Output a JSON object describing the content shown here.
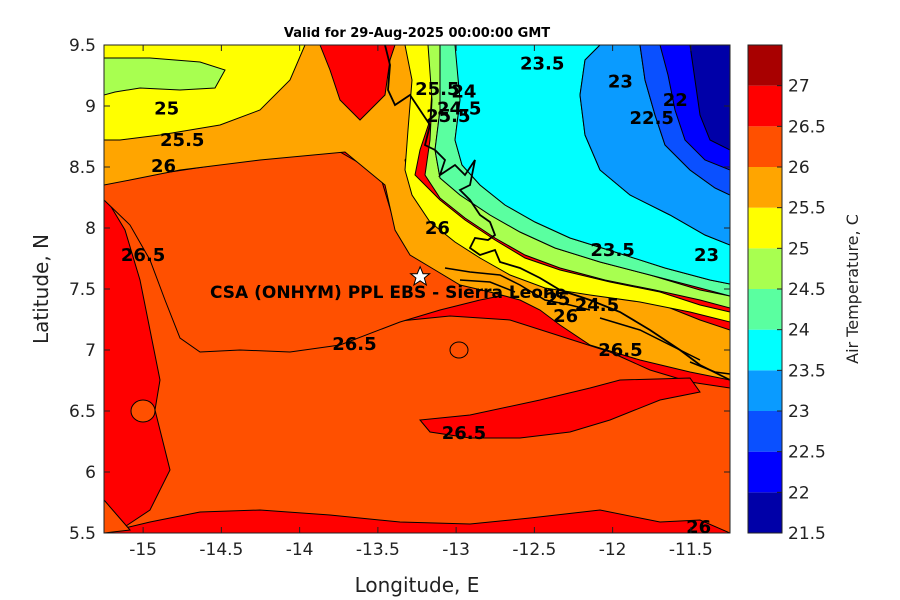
{
  "chart_data": {
    "type": "heatmap",
    "title": "Valid for 29-Aug-2025 00:00:00 GMT",
    "xlabel": "Longitude, E",
    "ylabel": "Latitude, N",
    "xlim": [
      -15.25,
      -11.25
    ],
    "ylim": [
      5.5,
      9.5
    ],
    "xticks": [
      "-15",
      "-14.5",
      "-14",
      "-13.5",
      "-13",
      "-12.5",
      "-12",
      "-11.5"
    ],
    "yticks": [
      "5.5",
      "6",
      "6.5",
      "7",
      "7.5",
      "8",
      "8.5",
      "9",
      "9.5"
    ],
    "colorbar": {
      "label": "Air Temperature, C",
      "ticks": [
        "21.5",
        "22",
        "22.5",
        "23",
        "23.5",
        "24",
        "24.5",
        "25",
        "25.5",
        "26",
        "26.5",
        "27"
      ],
      "colors": [
        "#0000a8",
        "#0000ff",
        "#0a50ff",
        "#0a9bff",
        "#00ffff",
        "#5affa0",
        "#a8ff50",
        "#ffff00",
        "#ffa500",
        "#ff5000",
        "#ff0000",
        "#a80000"
      ]
    },
    "contour_labels": [
      {
        "text": "23.5",
        "lon": -12.45,
        "lat": 9.35
      },
      {
        "text": "23",
        "lon": -11.95,
        "lat": 9.2
      },
      {
        "text": "22",
        "lon": -11.6,
        "lat": 9.05
      },
      {
        "text": "22.5",
        "lon": -11.75,
        "lat": 8.9
      },
      {
        "text": "25",
        "lon": -14.85,
        "lat": 8.98
      },
      {
        "text": "25.5",
        "lon": -14.75,
        "lat": 8.72
      },
      {
        "text": "26",
        "lon": -14.87,
        "lat": 8.51
      },
      {
        "text": "25.5",
        "lon": -13.12,
        "lat": 9.14
      },
      {
        "text": "24",
        "lon": -12.95,
        "lat": 9.12
      },
      {
        "text": "24.5",
        "lon": -12.98,
        "lat": 8.98
      },
      {
        "text": "25.5",
        "lon": -13.05,
        "lat": 8.92
      },
      {
        "text": "26",
        "lon": -13.12,
        "lat": 8.0
      },
      {
        "text": "26.5",
        "lon": -15.0,
        "lat": 7.78
      },
      {
        "text": "23.5",
        "lon": -12.0,
        "lat": 7.82
      },
      {
        "text": "23",
        "lon": -11.4,
        "lat": 7.78
      },
      {
        "text": "26.5",
        "lon": -13.65,
        "lat": 7.05
      },
      {
        "text": "26.5",
        "lon": -11.95,
        "lat": 7.0
      },
      {
        "text": "26.5",
        "lon": -12.95,
        "lat": 6.32
      },
      {
        "text": "26",
        "lon": -12.3,
        "lat": 7.28
      },
      {
        "text": "24.5",
        "lon": -12.1,
        "lat": 7.37
      },
      {
        "text": "25",
        "lon": -12.35,
        "lat": 7.42
      },
      {
        "text": "26",
        "lon": -11.45,
        "lat": 5.55
      }
    ],
    "site": {
      "name": "CSA (ONHYM) PPL EBS - Sierra Leone",
      "lon": -13.23,
      "lat": 7.6
    }
  }
}
